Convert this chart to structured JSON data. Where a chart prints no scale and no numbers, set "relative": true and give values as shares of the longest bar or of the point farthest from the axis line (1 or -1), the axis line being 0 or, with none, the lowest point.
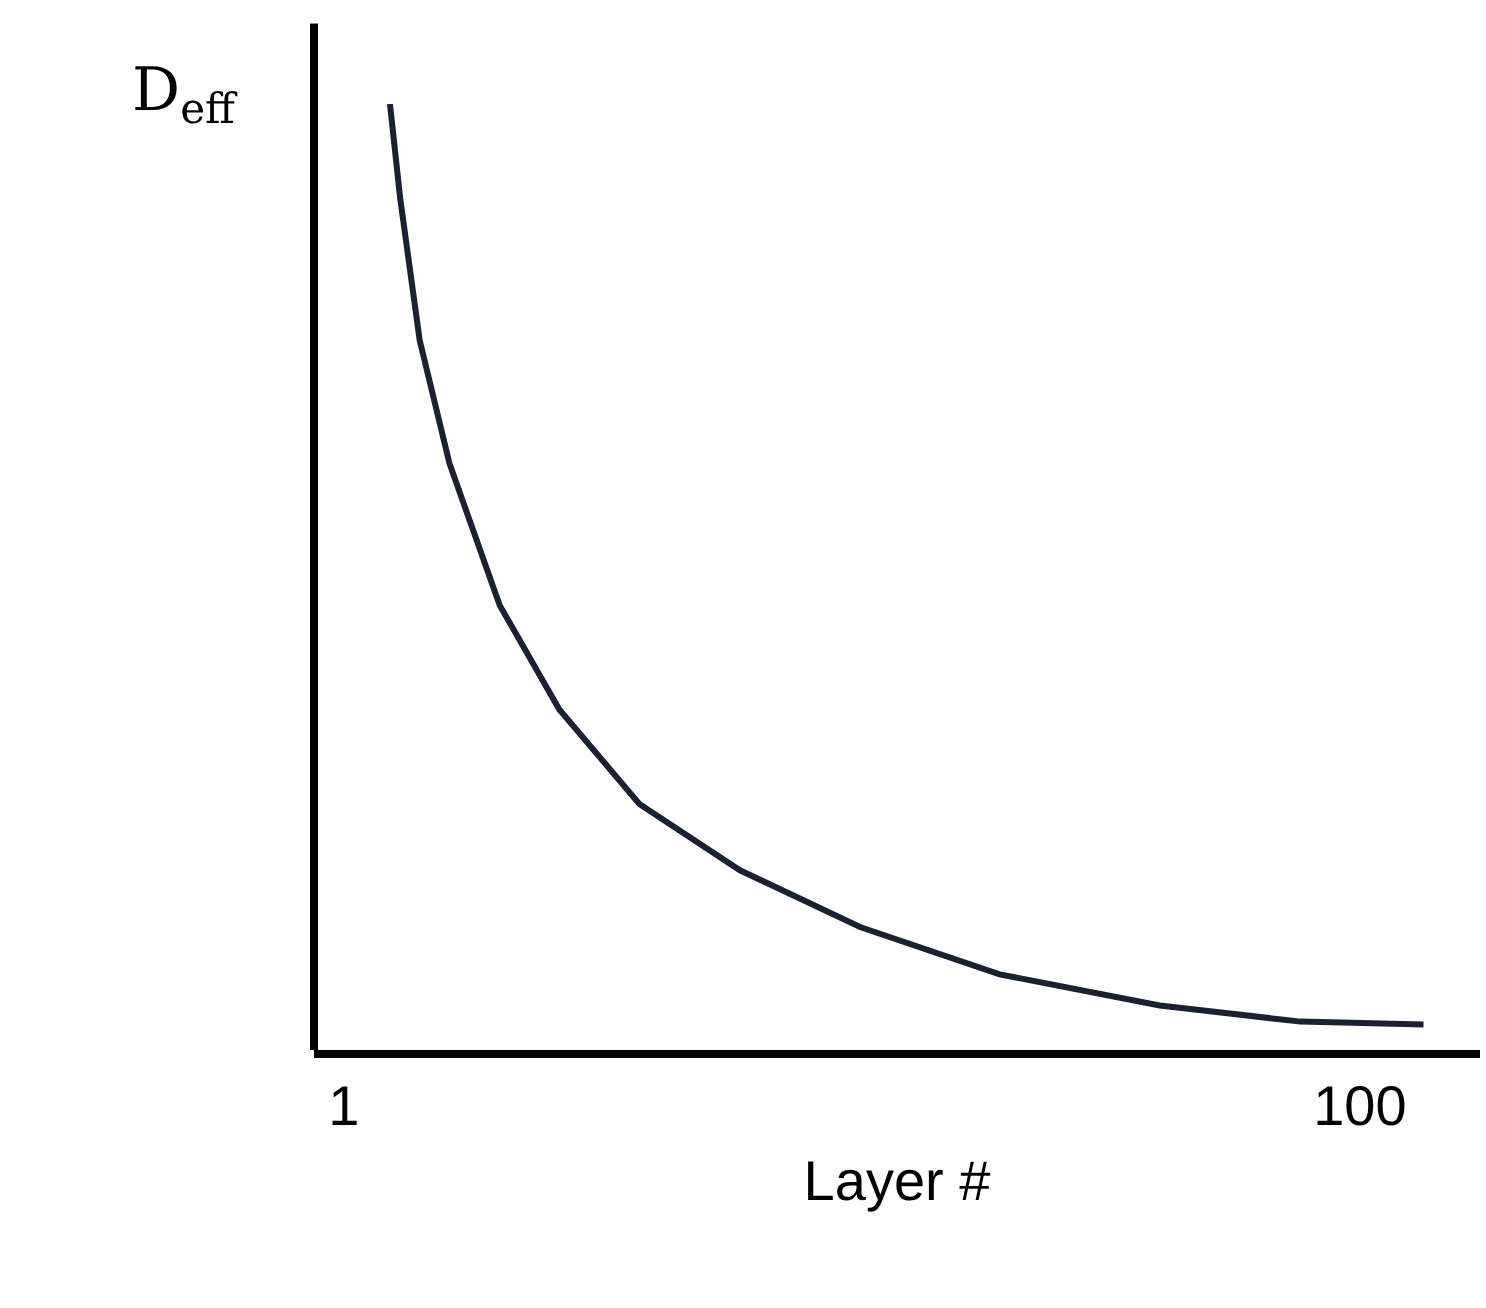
{
  "chart_data": {
    "type": "line",
    "relative": true,
    "xlabel": "Layer #",
    "ylabel": "D$_{eff}$",
    "xlim": [
      -1.9,
      111.7
    ],
    "xticks": [
      1,
      100
    ],
    "grid": false,
    "marker": "none",
    "line_style": "solid",
    "series": [
      {
        "color": "#1a2133",
        "x": [
          5.5,
          6.5,
          8.4,
          11.3,
          16.2,
          22.0,
          29.8,
          39.6,
          51.3,
          64.9,
          80.5,
          94.2,
          106.2
        ],
        "values": [
          1,
          0.9,
          0.75,
          0.62,
          0.47,
          0.36,
          0.26,
          0.19,
          0.13,
          0.08,
          0.047,
          0.03,
          0.027
        ]
      }
    ]
  }
}
